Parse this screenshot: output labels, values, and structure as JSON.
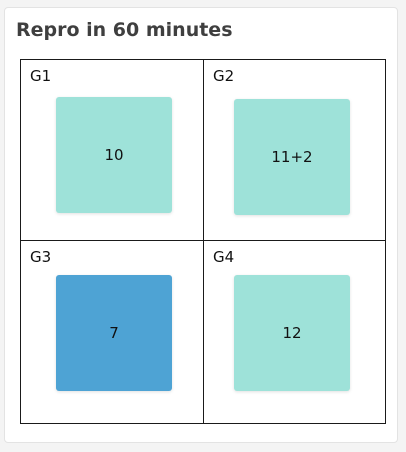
{
  "widget": {
    "title": "Repro in 60 minutes"
  },
  "colors": {
    "tile_light": "#9ee2d9",
    "tile_highlight": "#4ea3d4"
  },
  "groups": [
    {
      "label": "G1",
      "value": "10",
      "color": "#9ee2d9"
    },
    {
      "label": "G2",
      "value": "11+2",
      "color": "#9ee2d9"
    },
    {
      "label": "G3",
      "value": "7",
      "color": "#4ea3d4"
    },
    {
      "label": "G4",
      "value": "12",
      "color": "#9ee2d9"
    }
  ]
}
